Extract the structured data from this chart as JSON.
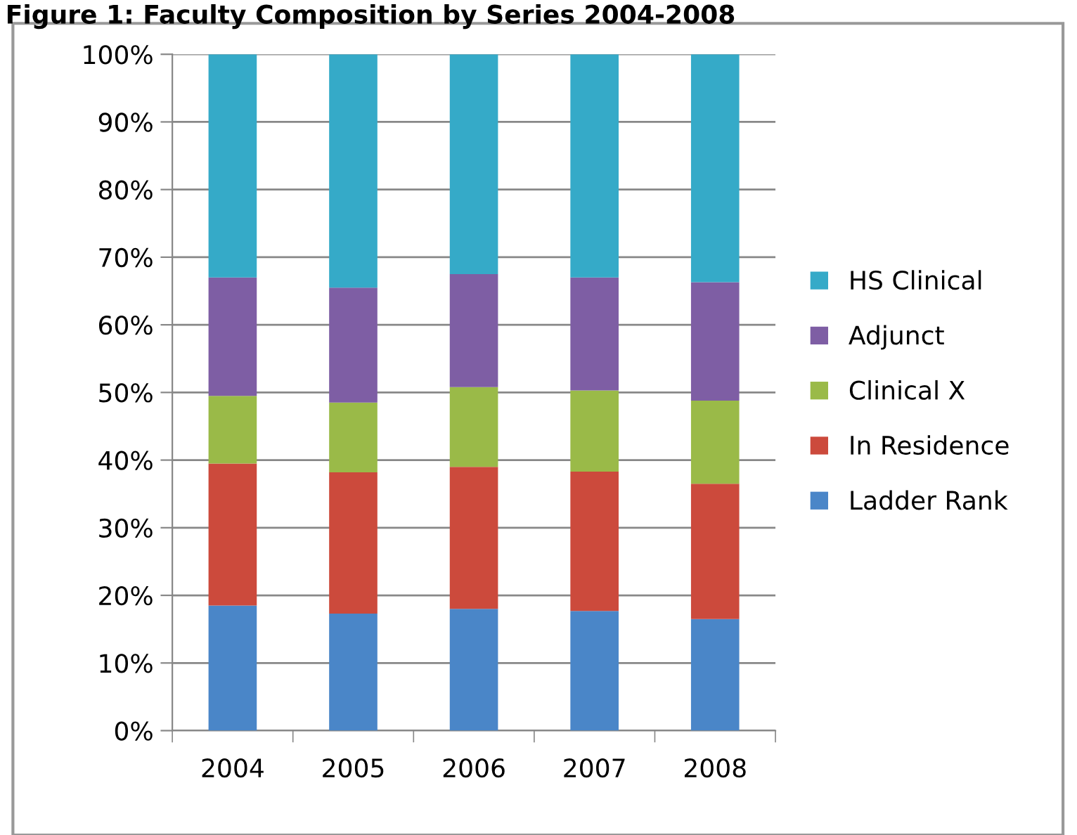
{
  "chart_data": {
    "type": "bar",
    "stacked": true,
    "title": "Figure 1: Faculty Composition by Series 2004-2008",
    "categories": [
      "2004",
      "2005",
      "2006",
      "2007",
      "2008"
    ],
    "series": [
      {
        "name": "Ladder Rank",
        "color": "#4a86c8",
        "values": [
          18.5,
          17.3,
          18,
          17.7,
          16.5
        ]
      },
      {
        "name": "In Residence",
        "color": "#cc4a3c",
        "values": [
          21,
          20.9,
          21,
          20.6,
          20
        ]
      },
      {
        "name": "Clinical X",
        "color": "#9aba48",
        "values": [
          10,
          10.3,
          11.8,
          12,
          12.3
        ]
      },
      {
        "name": "Adjunct",
        "color": "#7e5ea4",
        "values": [
          17.5,
          17,
          16.7,
          16.7,
          17.5
        ]
      },
      {
        "name": "HS Clinical",
        "color": "#35aac8",
        "values": [
          33,
          34.5,
          32.5,
          33,
          33.7
        ]
      }
    ],
    "ylim": [
      0,
      100
    ],
    "yticks": [
      {
        "value": 0,
        "label": "0%"
      },
      {
        "value": 10,
        "label": "10%"
      },
      {
        "value": 20,
        "label": "20%"
      },
      {
        "value": 30,
        "label": "30%"
      },
      {
        "value": 40,
        "label": "40%"
      },
      {
        "value": 50,
        "label": "50%"
      },
      {
        "value": 60,
        "label": "60%"
      },
      {
        "value": 70,
        "label": "70%"
      },
      {
        "value": 80,
        "label": "80%"
      },
      {
        "value": 90,
        "label": "90%"
      },
      {
        "value": 100,
        "label": "100%"
      }
    ],
    "grid": "y",
    "legend": "right"
  }
}
